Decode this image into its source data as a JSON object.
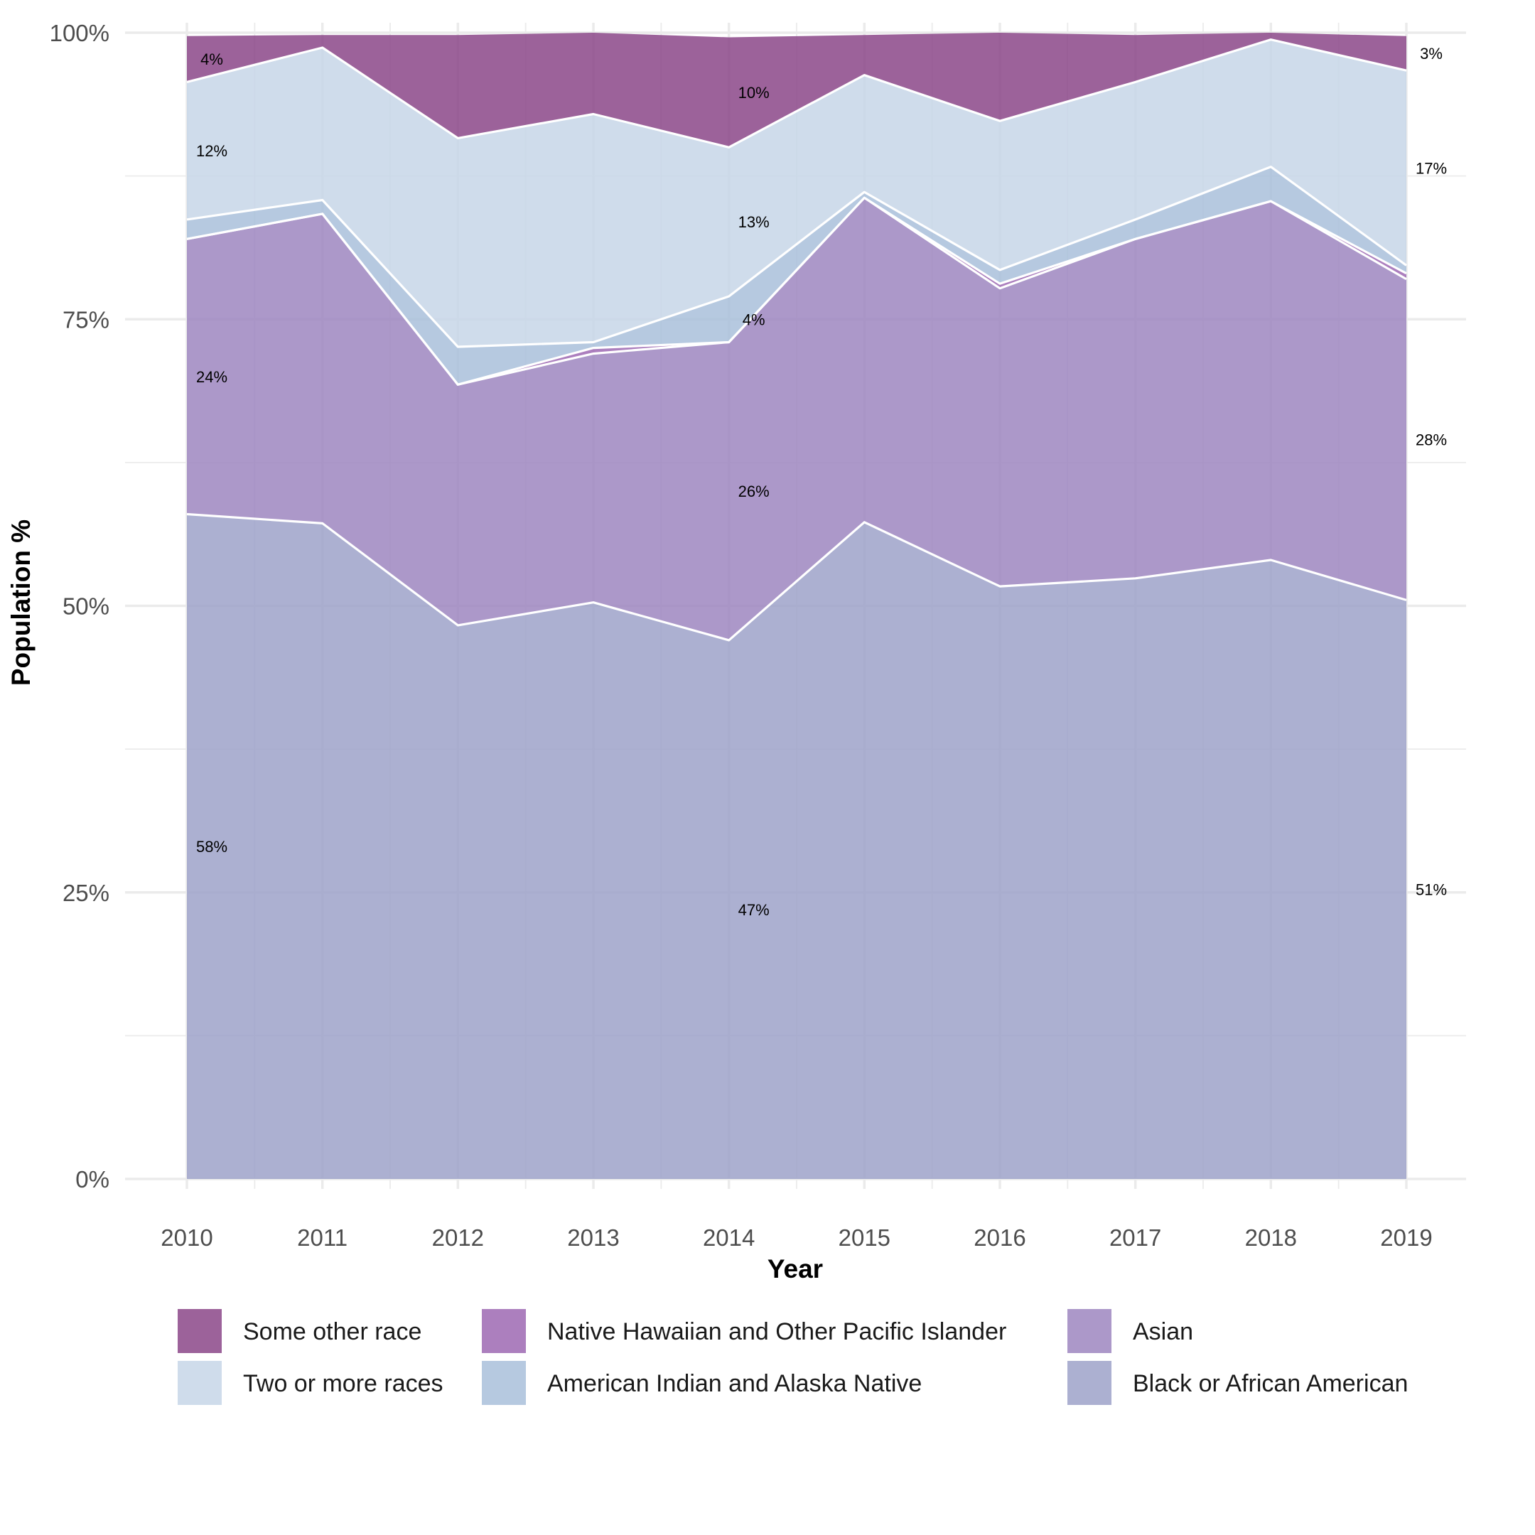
{
  "chart_data": {
    "type": "area",
    "stacked": true,
    "x": [
      2010,
      2011,
      2012,
      2013,
      2014,
      2015,
      2016,
      2017,
      2018,
      2019
    ],
    "xlabel": "Year",
    "ylabel": "Population %",
    "ylim": [
      0,
      1
    ],
    "y_ticks": [
      "0%",
      "25%",
      "50%",
      "75%",
      "100%"
    ],
    "grid": true,
    "legend_position": "bottom",
    "series": [
      {
        "name": "Black or African American",
        "color": "#9ea2c9",
        "values": [
          0.58,
          0.572,
          0.483,
          0.503,
          0.47,
          0.573,
          0.517,
          0.524,
          0.54,
          0.505
        ]
      },
      {
        "name": "Asian",
        "color": "#9e86bf",
        "values": [
          0.24,
          0.27,
          0.21,
          0.217,
          0.26,
          0.283,
          0.26,
          0.296,
          0.313,
          0.28
        ]
      },
      {
        "name": "Native Hawaiian and Other Pacific Islander",
        "color": "#9d69b3",
        "values": [
          0.0,
          0.0,
          0.0,
          0.005,
          0.0,
          0.0,
          0.004,
          0.0,
          0.0,
          0.005
        ]
      },
      {
        "name": "American Indian and Alaska Native",
        "color": "#a9bfdb",
        "values": [
          0.017,
          0.012,
          0.033,
          0.005,
          0.04,
          0.005,
          0.012,
          0.017,
          0.03,
          0.007
        ]
      },
      {
        "name": "Two or more races",
        "color": "#c7d6e7",
        "values": [
          0.12,
          0.133,
          0.182,
          0.199,
          0.13,
          0.102,
          0.13,
          0.12,
          0.111,
          0.17
        ]
      },
      {
        "name": "Some other race",
        "color": "#8b4788",
        "values": [
          0.04,
          0.011,
          0.09,
          0.071,
          0.096,
          0.035,
          0.077,
          0.041,
          0.006,
          0.03
        ]
      }
    ],
    "data_labels": [
      {
        "year": 2010,
        "series": "Black or African American",
        "text": "58%"
      },
      {
        "year": 2010,
        "series": "Asian",
        "text": "24%"
      },
      {
        "year": 2010,
        "series": "Two or more races",
        "text": "12%"
      },
      {
        "year": 2010,
        "series": "Some other race",
        "text": "4%"
      },
      {
        "year": 2014,
        "series": "Black or African American",
        "text": "47%"
      },
      {
        "year": 2014,
        "series": "Asian",
        "text": "26%"
      },
      {
        "year": 2014,
        "series": "American Indian and Alaska Native",
        "text": "4%"
      },
      {
        "year": 2014,
        "series": "Two or more races",
        "text": "13%"
      },
      {
        "year": 2014,
        "series": "Some other race",
        "text": "10%"
      },
      {
        "year": 2019,
        "series": "Black or African American",
        "text": "51%"
      },
      {
        "year": 2019,
        "series": "Asian",
        "text": "28%"
      },
      {
        "year": 2019,
        "series": "Two or more races",
        "text": "17%"
      },
      {
        "year": 2019,
        "series": "Some other race",
        "text": "3%"
      }
    ],
    "legend_order": [
      "Some other race",
      "Native Hawaiian and Other Pacific Islander",
      "Asian",
      "Two or more races",
      "American Indian and Alaska Native",
      "Black or African American"
    ]
  }
}
